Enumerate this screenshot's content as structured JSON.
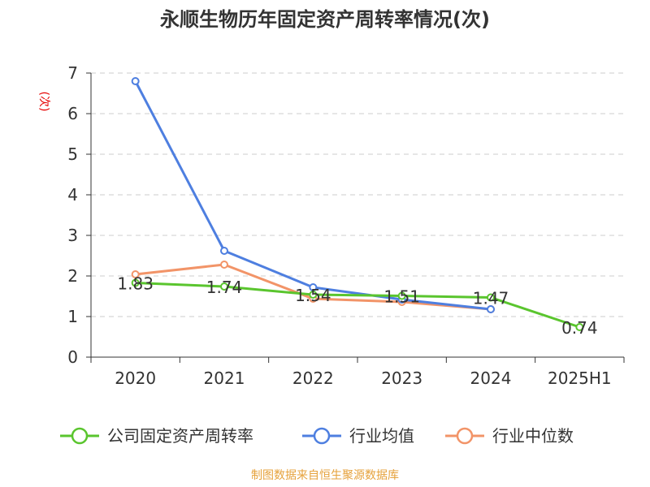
{
  "chart_data": {
    "type": "line",
    "title": "永顺生物历年固定资产周转率情况(次)",
    "ylabel": "(次)",
    "categories": [
      "2020",
      "2021",
      "2022",
      "2023",
      "2024",
      "2025H1"
    ],
    "ylim": [
      0,
      7
    ],
    "yticks": [
      "0",
      "1",
      "2",
      "3",
      "4",
      "5",
      "6",
      "7"
    ],
    "grid": true,
    "legend_position": "bottom",
    "series": [
      {
        "name": "公司固定资产周转率",
        "color": "#5ac52e",
        "values": [
          1.83,
          1.74,
          1.54,
          1.51,
          1.47,
          0.74
        ],
        "labels": [
          "1.83",
          "1.74",
          "1.54",
          "1.51",
          "1.47",
          "0.74"
        ]
      },
      {
        "name": "行业均值",
        "color": "#4e7fe0",
        "values": [
          6.8,
          2.62,
          1.72,
          1.42,
          1.18,
          null
        ]
      },
      {
        "name": "行业中位数",
        "color": "#f29468",
        "values": [
          2.04,
          2.28,
          1.44,
          1.36,
          1.18,
          null
        ]
      }
    ],
    "source": "制图数据来自恒生聚源数据库"
  }
}
